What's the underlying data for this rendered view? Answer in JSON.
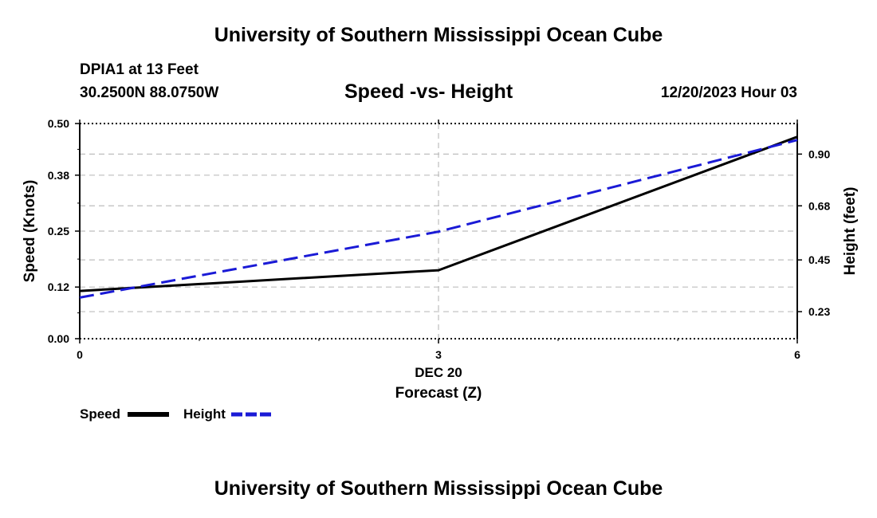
{
  "header": {
    "title": "University of Southern Mississippi Ocean Cube",
    "station": "DPIA1 at 13 Feet",
    "coords": "30.2500N  88.0750W",
    "subtitle": "Speed -vs- Height",
    "datetime": "12/20/2023 Hour 03"
  },
  "footer": {
    "title": "University of Southern Mississippi Ocean Cube"
  },
  "colors": {
    "speed": "#000000",
    "height": "#1a1ad6",
    "grid": "#bdbdbd"
  },
  "chart_data": {
    "type": "line",
    "title": "Speed -vs- Height",
    "xlabel": "Forecast (Z)",
    "x_date_label": "DEC 20",
    "x": [
      0,
      3,
      6
    ],
    "x_ticks": [
      "0",
      "3",
      "6"
    ],
    "xlim": [
      0,
      6
    ],
    "ylabel_left": "Speed (Knots)",
    "ylabel_right": "Height (feet)",
    "ylim_left": [
      0.0,
      0.5
    ],
    "ylim_right": [
      0.115,
      1.03
    ],
    "yticks_left": [
      0.0,
      0.12,
      0.25,
      0.38,
      0.5
    ],
    "yticks_left_labels": [
      "0.00",
      "0.12",
      "0.25",
      "0.38",
      "0.50"
    ],
    "yticks_right": [
      0.23,
      0.45,
      0.68,
      0.9
    ],
    "yticks_right_labels": [
      "0.23",
      "0.45",
      "0.68",
      "0.90"
    ],
    "series": [
      {
        "name": "Speed",
        "axis": "left",
        "style": "solid",
        "values": [
          0.111,
          0.159,
          0.469
        ]
      },
      {
        "name": "Height",
        "axis": "right",
        "style": "dashed",
        "values": [
          0.29,
          0.57,
          0.96
        ]
      }
    ],
    "legend": [
      {
        "label": "Speed",
        "style": "solid"
      },
      {
        "label": "Height",
        "style": "dashed"
      }
    ],
    "grid": true
  }
}
